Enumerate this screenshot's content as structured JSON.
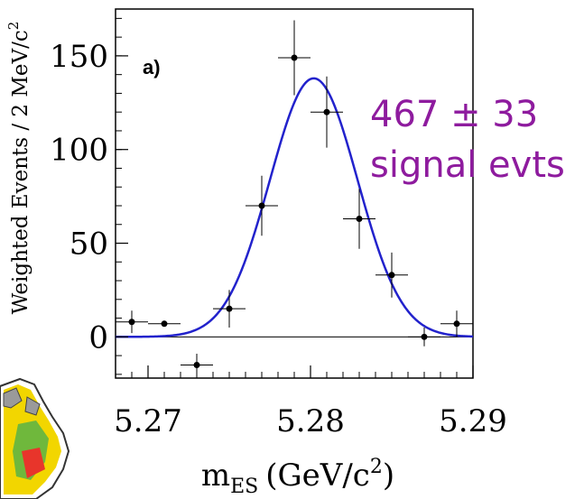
{
  "chart_data": {
    "type": "scatter",
    "title": "",
    "panel_label": "a)",
    "xlabel": "m",
    "xlabel_sub": "ES",
    "xlabel_unit": "(GeV/c",
    "xlabel_sup": "2",
    "xlabel_close": ")",
    "ylabel": "Weighted Events / 2 MeV/c",
    "ylabel_sup": "2",
    "xlim": [
      5.268,
      5.29
    ],
    "ylim": [
      -22,
      175
    ],
    "x_ticks": [
      {
        "value": 5.27,
        "label": "5.27"
      },
      {
        "value": 5.28,
        "label": "5.28"
      },
      {
        "value": 5.29,
        "label": "5.29"
      }
    ],
    "y_ticks": [
      {
        "value": 0,
        "label": "0"
      },
      {
        "value": 50,
        "label": "50"
      },
      {
        "value": 100,
        "label": "100"
      },
      {
        "value": 150,
        "label": "150"
      }
    ],
    "grid": false,
    "zero_line": true,
    "series": [
      {
        "kind": "points",
        "color": "#000000",
        "x": [
          5.269,
          5.271,
          5.273,
          5.275,
          5.277,
          5.279,
          5.281,
          5.283,
          5.285,
          5.287,
          5.289
        ],
        "y": [
          8,
          7,
          -15,
          15,
          70,
          149,
          120,
          63,
          33,
          0,
          7
        ],
        "yerr": [
          6,
          0,
          6,
          10,
          16,
          20,
          19,
          16,
          12,
          5,
          7
        ]
      },
      {
        "kind": "curve",
        "color": "#2222cc",
        "function": "gaussian",
        "amplitude": 138,
        "mean": 5.2802,
        "sigma": 0.0027
      }
    ],
    "annotation": {
      "line1": "467 ± 33",
      "line2": "signal evts",
      "color": "#8e1b9e"
    }
  }
}
